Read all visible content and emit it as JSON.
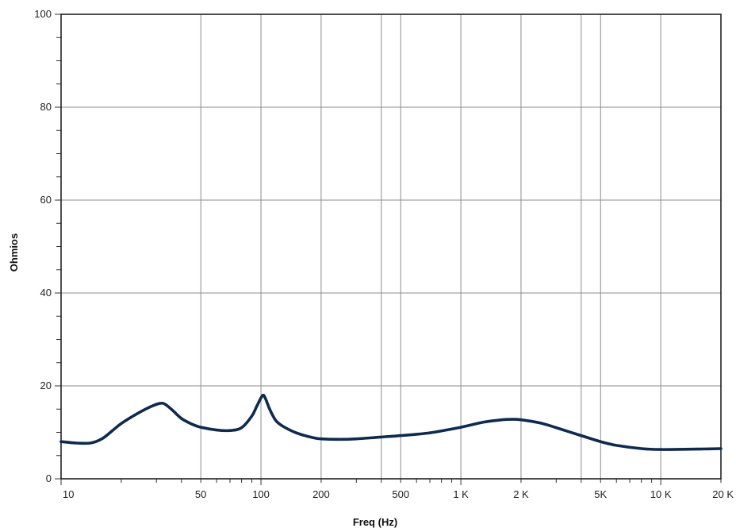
{
  "chart_data": {
    "type": "line",
    "title": "",
    "xlabel": "Freq (Hz)",
    "ylabel": "Ohmios",
    "xscale": "log",
    "xlim": [
      10,
      20000
    ],
    "ylim": [
      0,
      100
    ],
    "grid": true,
    "x_ticks": [
      {
        "value": 10,
        "label": "10"
      },
      {
        "value": 50,
        "label": "50"
      },
      {
        "value": 100,
        "label": "100"
      },
      {
        "value": 200,
        "label": "200"
      },
      {
        "value": 500,
        "label": "500"
      },
      {
        "value": 1000,
        "label": "1 K"
      },
      {
        "value": 2000,
        "label": "2 K"
      },
      {
        "value": 5000,
        "label": "5K"
      },
      {
        "value": 10000,
        "label": "10 K"
      },
      {
        "value": 20000,
        "label": "20 K"
      }
    ],
    "x_extra_grid": [
      400,
      4000
    ],
    "y_ticks": [
      {
        "value": 0,
        "label": "0"
      },
      {
        "value": 20,
        "label": "20"
      },
      {
        "value": 40,
        "label": "40"
      },
      {
        "value": 60,
        "label": "60"
      },
      {
        "value": 80,
        "label": "80"
      },
      {
        "value": 100,
        "label": "100"
      }
    ],
    "line_color": "#0f2a4f",
    "series": [
      {
        "x": [
          10,
          12,
          14,
          16,
          18,
          20,
          24,
          28,
          31,
          33,
          36,
          40,
          45,
          50,
          60,
          70,
          80,
          90,
          95,
          100,
          103,
          106,
          110,
          115,
          120,
          130,
          150,
          180,
          200,
          250,
          300,
          400,
          500,
          700,
          1000,
          1300,
          1600,
          1800,
          2000,
          2500,
          3000,
          4000,
          5000,
          6000,
          8000,
          10000,
          15000,
          20000
        ],
        "y": [
          8.0,
          7.7,
          7.7,
          8.6,
          10.3,
          11.9,
          14.0,
          15.5,
          16.2,
          16.1,
          14.8,
          13.0,
          11.8,
          11.1,
          10.5,
          10.4,
          11.0,
          13.5,
          15.5,
          17.4,
          18.0,
          17.0,
          15.2,
          13.5,
          12.3,
          11.2,
          9.9,
          8.9,
          8.6,
          8.5,
          8.6,
          9.0,
          9.3,
          9.9,
          11.1,
          12.2,
          12.7,
          12.8,
          12.7,
          12.0,
          11.0,
          9.3,
          8.0,
          7.2,
          6.5,
          6.3,
          6.4,
          6.5
        ]
      }
    ]
  }
}
